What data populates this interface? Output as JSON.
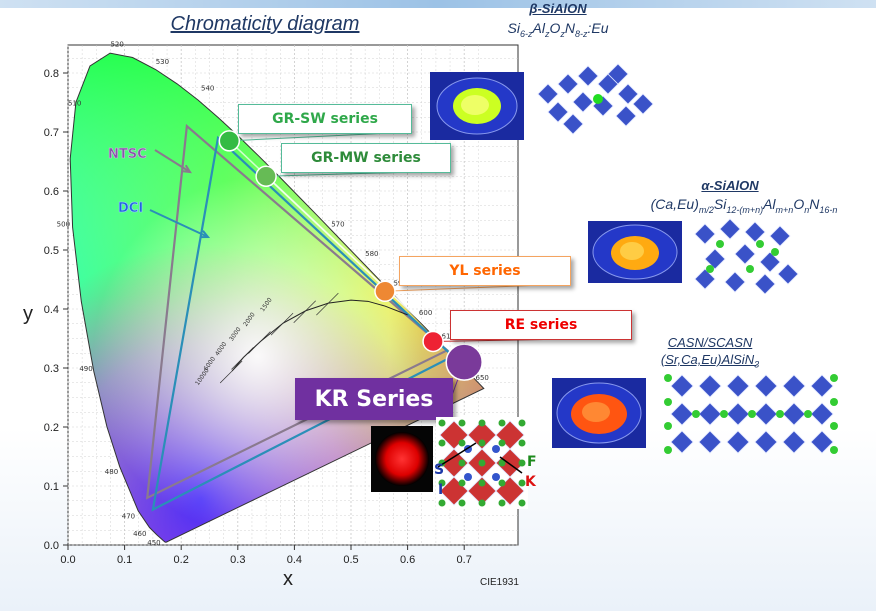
{
  "diagram": {
    "title": "Chromaticity diagram",
    "xlabel": "x",
    "ylabel": "y",
    "footnote": "CIE1931",
    "x_ticks": [
      "0.0",
      "0.1",
      "0.2",
      "0.3",
      "0.4",
      "0.5",
      "0.6",
      "0.7"
    ],
    "y_ticks": [
      "0.0",
      "0.1",
      "0.2",
      "0.3",
      "0.4",
      "0.5",
      "0.6",
      "0.7",
      "0.8"
    ],
    "wavelengths": [
      "520",
      "530",
      "540",
      "510",
      "500",
      "490",
      "480",
      "470",
      "460",
      "450",
      "570",
      "580",
      "590",
      "600",
      "610",
      "650"
    ],
    "planck_labels": [
      "10000",
      "6000",
      "4000",
      "3000",
      "2000",
      "1500"
    ],
    "ntsc_label": "NTSC",
    "dci_label": "DCI"
  },
  "chart_data": {
    "type": "scatter",
    "xlim": [
      0,
      0.75
    ],
    "ylim": [
      0,
      0.85
    ],
    "series": [
      {
        "name": "GR-SW series",
        "x": [
          0.285
        ],
        "y": [
          0.685
        ],
        "color": "#33bb44"
      },
      {
        "name": "GR-MW series",
        "x": [
          0.35
        ],
        "y": [
          0.625
        ],
        "color": "#66bb55"
      },
      {
        "name": "YL series",
        "x": [
          0.56
        ],
        "y": [
          0.43
        ],
        "color": "#ee8833"
      },
      {
        "name": "RE series",
        "x": [
          0.645
        ],
        "y": [
          0.345
        ],
        "color": "#ee2233"
      },
      {
        "name": "KR Series",
        "x": [
          0.7
        ],
        "y": [
          0.31
        ],
        "color": "#7a3a9a"
      }
    ],
    "ntsc_triangle": [
      [
        0.67,
        0.33
      ],
      [
        0.21,
        0.71
      ],
      [
        0.14,
        0.08
      ]
    ],
    "dci_triangle": [
      [
        0.68,
        0.32
      ],
      [
        0.265,
        0.69
      ],
      [
        0.15,
        0.06
      ]
    ]
  },
  "labels": {
    "grsw": "GR-SW  series",
    "grmw": "GR-MW series",
    "yl": "YL series",
    "re": "RE series",
    "kr": "KR Series"
  },
  "materials": {
    "beta": {
      "name": "β-SiAlON",
      "formula_parts": [
        "Si",
        "6-z",
        "Al",
        "z",
        "O",
        "z",
        "N",
        "8-z",
        ":Eu"
      ]
    },
    "alpha": {
      "name": "α-SiAlON",
      "formula_parts": [
        "(Ca,Eu)",
        "m/2",
        "Si",
        "12-(m+n)",
        "Al",
        "m+n",
        "O",
        "n",
        "N",
        "16-n"
      ]
    },
    "casn": {
      "name": "CASN/SCASN",
      "formula_parts": [
        "(Sr,Ca,Eu)AlSiN",
        "3"
      ]
    }
  },
  "kr_crystal_letters": {
    "s": "S",
    "f": "F",
    "i": "I",
    "k": "K"
  },
  "colors": {
    "bar": "#9cc2e6",
    "kr_box": "#7030a0",
    "grsw": "#33bb44",
    "grmw": "#44aa44",
    "yl": "#ff6600",
    "re": "#ee0000"
  }
}
